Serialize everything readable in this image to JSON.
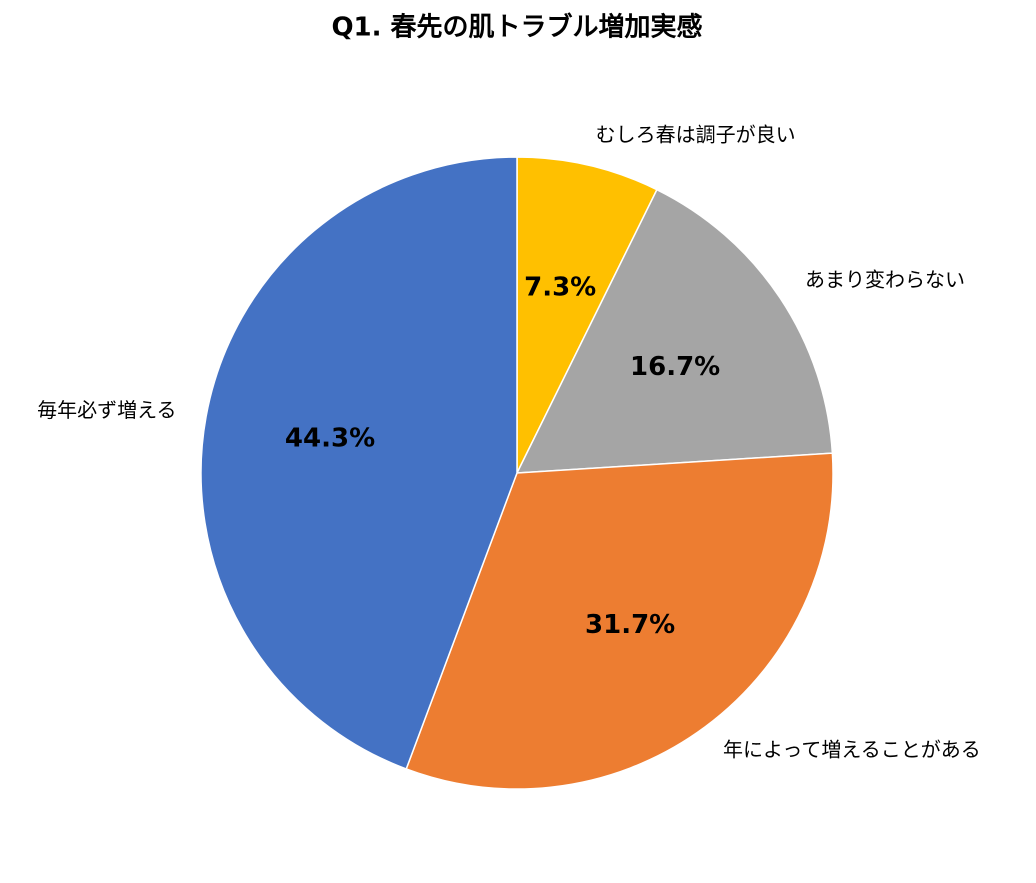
{
  "chart_data": {
    "type": "pie",
    "title": "Q1. 春先の肌トラブル増加実感",
    "categories": [
      "むしろ春は調子が良い",
      "あまり変わらない",
      "年によって増えることがある",
      "毎年必ず増える"
    ],
    "values": [
      7.3,
      16.7,
      31.7,
      44.3
    ],
    "value_labels": [
      "7.3%",
      "16.7%",
      "31.7%",
      "44.3%"
    ],
    "colors": [
      "#FFC000",
      "#A5A5A5",
      "#ED7D31",
      "#4472C4"
    ]
  }
}
